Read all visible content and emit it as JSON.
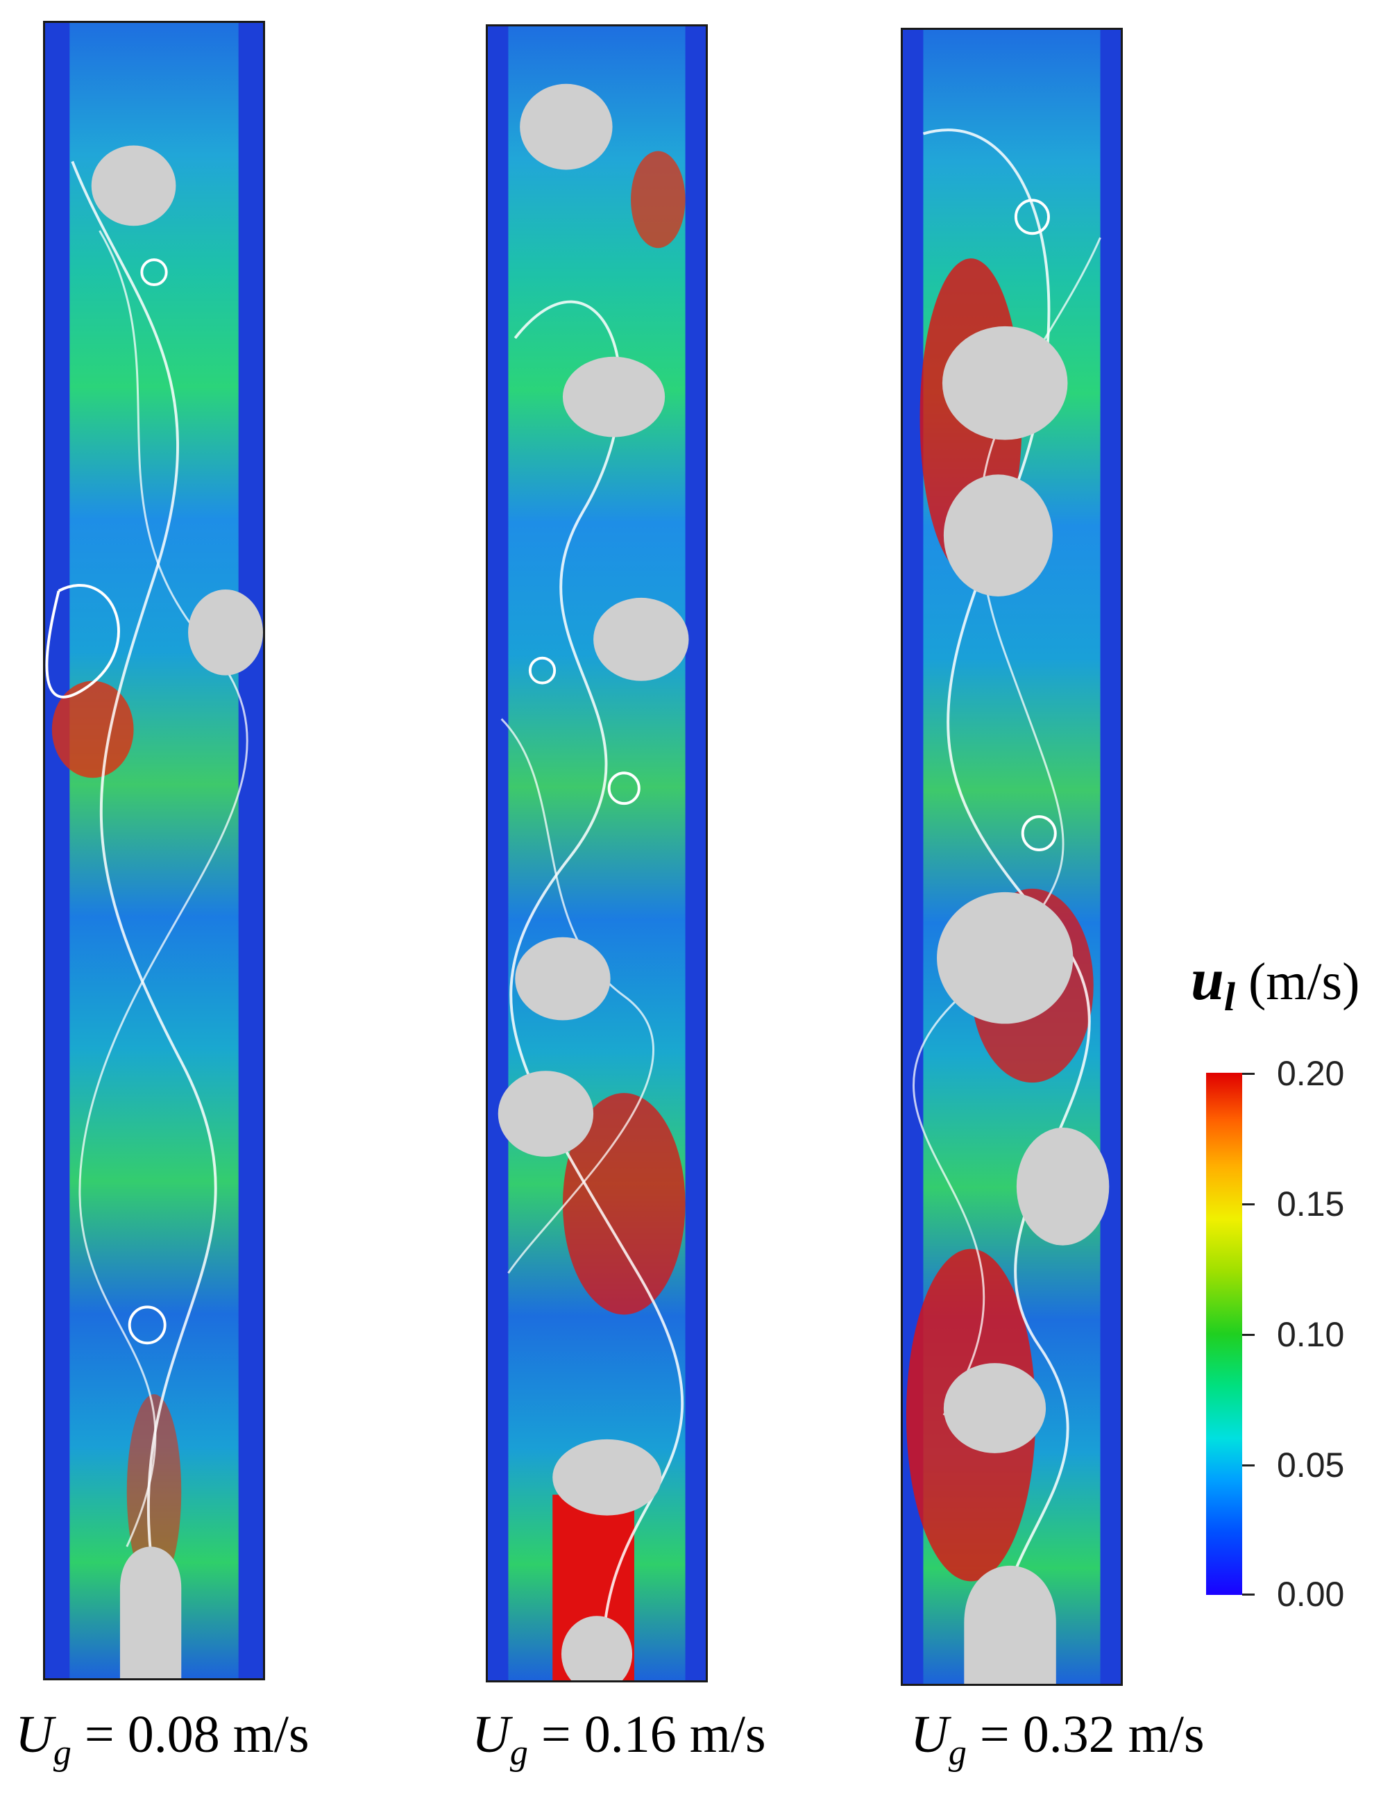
{
  "figure": {
    "panels": [
      {
        "velocity_label": "= 0.08 m/s",
        "symbol": "U",
        "subscript": "g"
      },
      {
        "velocity_label": "= 0.16 m/s",
        "symbol": "U",
        "subscript": "g"
      },
      {
        "velocity_label": "= 0.32 m/s",
        "symbol": "U",
        "subscript": "g"
      }
    ],
    "colorbar": {
      "symbol": "u",
      "subscript": "l",
      "unit": "(m/s)",
      "ticks": [
        "0.20",
        "0.15",
        "0.10",
        "0.05",
        "0.00"
      ],
      "colors": [
        "#1a00ff",
        "#00a0ff",
        "#20d020",
        "#f0f000",
        "#e00000"
      ]
    },
    "colors": {
      "bubble": "#cfcfcf",
      "streamline": "#ffffff",
      "high_velocity": "#e00000",
      "low_velocity": "#1c3fd8"
    }
  }
}
